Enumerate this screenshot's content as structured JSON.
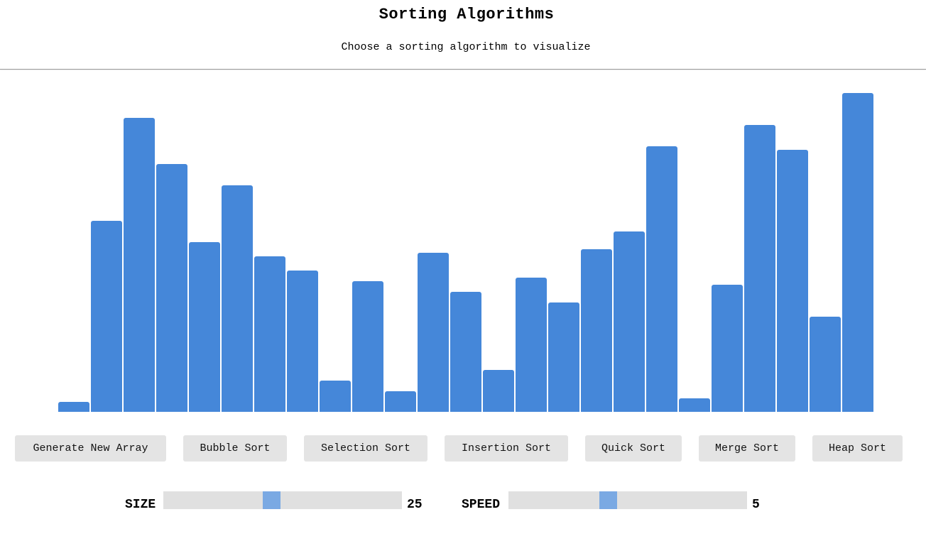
{
  "header": {
    "title": "Sorting Algorithms",
    "subtitle": "Choose a sorting algorithm to visualize"
  },
  "colors": {
    "bar": "#4587d9",
    "button_bg": "#e4e4e4",
    "slider_track": "#e0e0e0",
    "slider_thumb": "#7aa9e3"
  },
  "array": {
    "values": [
      14,
      269,
      414,
      349,
      239,
      319,
      219,
      199,
      44,
      184,
      29,
      224,
      169,
      59,
      189,
      154,
      229,
      254,
      374,
      19,
      179,
      404,
      369,
      134,
      449
    ],
    "max": 450
  },
  "buttons": [
    {
      "label": "Generate New Array",
      "name": "generate-array-button"
    },
    {
      "label": "Bubble Sort",
      "name": "bubble-sort-button"
    },
    {
      "label": "Selection Sort",
      "name": "selection-sort-button"
    },
    {
      "label": "Insertion Sort",
      "name": "insertion-sort-button"
    },
    {
      "label": "Quick Sort",
      "name": "quick-sort-button"
    },
    {
      "label": "Merge Sort",
      "name": "merge-sort-button"
    },
    {
      "label": "Heap Sort",
      "name": "heap-sort-button"
    }
  ],
  "controls": {
    "size": {
      "label": "SIZE",
      "value": "25",
      "fraction": 0.45
    },
    "speed": {
      "label": "SPEED",
      "value": "5",
      "fraction": 0.41
    }
  }
}
